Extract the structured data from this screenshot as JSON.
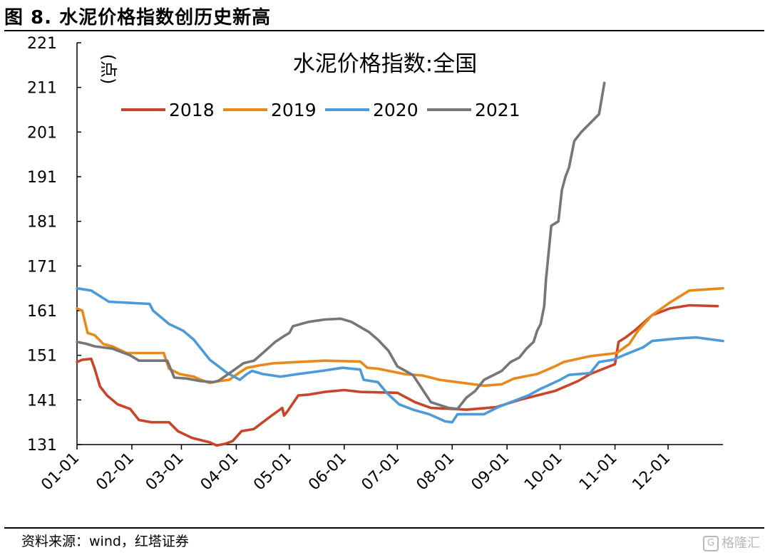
{
  "figure": {
    "title": "图 8. 水泥价格指数创历史新高",
    "source": "资料来源：wind，红塔证券",
    "watermark": "格隆汇",
    "watermark_icon": "G"
  },
  "chart_data": {
    "type": "line",
    "title": "水泥价格指数:全国",
    "ylabel": "(点)",
    "xlabel": "",
    "ylim": [
      131,
      221
    ],
    "yticks": [
      131,
      141,
      151,
      161,
      171,
      181,
      191,
      201,
      211,
      221
    ],
    "xlim": [
      0,
      365
    ],
    "xticks": [
      {
        "label": "01-01",
        "day": 0
      },
      {
        "label": "02-01",
        "day": 31
      },
      {
        "label": "03-01",
        "day": 59
      },
      {
        "label": "04-01",
        "day": 90
      },
      {
        "label": "05-01",
        "day": 120
      },
      {
        "label": "06-01",
        "day": 151
      },
      {
        "label": "07-01",
        "day": 181
      },
      {
        "label": "08-01",
        "day": 212
      },
      {
        "label": "09-01",
        "day": 243
      },
      {
        "label": "10-01",
        "day": 273
      },
      {
        "label": "11-01",
        "day": 304
      },
      {
        "label": "12-01",
        "day": 334
      }
    ],
    "grid": false,
    "legend_position": "top-left",
    "series": [
      {
        "name": "2018",
        "color": "#c8452a",
        "points": [
          [
            0,
            149.5
          ],
          [
            3,
            150
          ],
          [
            8,
            150.2
          ],
          [
            10,
            148
          ],
          [
            13,
            144
          ],
          [
            17,
            142
          ],
          [
            23,
            140
          ],
          [
            30,
            139
          ],
          [
            35,
            136.5
          ],
          [
            42,
            136
          ],
          [
            52,
            136
          ],
          [
            57,
            134
          ],
          [
            65,
            132.5
          ],
          [
            75,
            131.5
          ],
          [
            79,
            130.8
          ],
          [
            84,
            131.2
          ],
          [
            88,
            131.8
          ],
          [
            93,
            134
          ],
          [
            100,
            134.5
          ],
          [
            110,
            137.5
          ],
          [
            116,
            139.2
          ],
          [
            117,
            137.5
          ],
          [
            119,
            138.5
          ],
          [
            125,
            142
          ],
          [
            131,
            142.2
          ],
          [
            140,
            142.8
          ],
          [
            151,
            143.2
          ],
          [
            160,
            142.8
          ],
          [
            181,
            142.6
          ],
          [
            191,
            140.5
          ],
          [
            200,
            139.2
          ],
          [
            212,
            139
          ],
          [
            220,
            138.8
          ],
          [
            237,
            139.4
          ],
          [
            250,
            141
          ],
          [
            270,
            143
          ],
          [
            283,
            145.2
          ],
          [
            290,
            146.8
          ],
          [
            304,
            149
          ],
          [
            306,
            154
          ],
          [
            310,
            155
          ],
          [
            315,
            156.5
          ],
          [
            325,
            160
          ],
          [
            335,
            161.5
          ],
          [
            346,
            162.2
          ],
          [
            362,
            162
          ]
        ]
      },
      {
        "name": "2019",
        "color": "#e8891c",
        "points": [
          [
            0,
            161.5
          ],
          [
            3,
            161
          ],
          [
            6,
            156
          ],
          [
            10,
            155.5
          ],
          [
            15,
            153.5
          ],
          [
            20,
            153
          ],
          [
            28,
            151.5
          ],
          [
            49,
            151.5
          ],
          [
            52,
            148
          ],
          [
            58,
            146.8
          ],
          [
            66,
            146.2
          ],
          [
            70,
            145.5
          ],
          [
            75,
            144.8
          ],
          [
            80,
            145.2
          ],
          [
            86,
            145.5
          ],
          [
            92,
            147.2
          ],
          [
            96,
            148.2
          ],
          [
            104,
            148.8
          ],
          [
            111,
            149.2
          ],
          [
            125,
            149.5
          ],
          [
            140,
            149.8
          ],
          [
            160,
            149.6
          ],
          [
            164,
            148.2
          ],
          [
            170,
            148
          ],
          [
            185,
            146.8
          ],
          [
            195,
            146.5
          ],
          [
            205,
            145.5
          ],
          [
            230,
            144.2
          ],
          [
            240,
            144.5
          ],
          [
            247,
            145.8
          ],
          [
            260,
            146.8
          ],
          [
            270,
            148.5
          ],
          [
            275,
            149.5
          ],
          [
            290,
            150.8
          ],
          [
            305,
            151.5
          ],
          [
            312,
            153.5
          ],
          [
            317,
            156.5
          ],
          [
            325,
            160
          ],
          [
            335,
            162.8
          ],
          [
            346,
            165.5
          ],
          [
            365,
            166
          ]
        ]
      },
      {
        "name": "2020",
        "color": "#4c9ad8",
        "points": [
          [
            0,
            166
          ],
          [
            8,
            165.5
          ],
          [
            18,
            163
          ],
          [
            41,
            162.5
          ],
          [
            43,
            161
          ],
          [
            52,
            158
          ],
          [
            60,
            156.5
          ],
          [
            66,
            154.5
          ],
          [
            75,
            150
          ],
          [
            85,
            147
          ],
          [
            92,
            145.5
          ],
          [
            96,
            146.8
          ],
          [
            99,
            147.5
          ],
          [
            105,
            146.8
          ],
          [
            115,
            146.2
          ],
          [
            125,
            146.8
          ],
          [
            140,
            147.6
          ],
          [
            150,
            148.2
          ],
          [
            160,
            147.8
          ],
          [
            162,
            145.5
          ],
          [
            170,
            145
          ],
          [
            175,
            142.6
          ],
          [
            182,
            140
          ],
          [
            190,
            138.8
          ],
          [
            199,
            137.8
          ],
          [
            208,
            136.2
          ],
          [
            212,
            136
          ],
          [
            215,
            137.8
          ],
          [
            230,
            137.8
          ],
          [
            238,
            139.4
          ],
          [
            245,
            140.5
          ],
          [
            255,
            142
          ],
          [
            262,
            143.5
          ],
          [
            266,
            144.2
          ],
          [
            273,
            145.5
          ],
          [
            278,
            146.6
          ],
          [
            290,
            147
          ],
          [
            295,
            149.5
          ],
          [
            303,
            150
          ],
          [
            310,
            151.2
          ],
          [
            320,
            152.8
          ],
          [
            325,
            154.2
          ],
          [
            340,
            154.8
          ],
          [
            350,
            155
          ],
          [
            365,
            154.2
          ]
        ]
      },
      {
        "name": "2021",
        "color": "#767676",
        "points": [
          [
            0,
            154
          ],
          [
            5,
            153.6
          ],
          [
            10,
            153
          ],
          [
            20,
            152.5
          ],
          [
            30,
            151
          ],
          [
            35,
            149.8
          ],
          [
            51,
            149.8
          ],
          [
            55,
            146
          ],
          [
            62,
            145.8
          ],
          [
            70,
            145.2
          ],
          [
            77,
            145
          ],
          [
            80,
            145.3
          ],
          [
            88,
            147.5
          ],
          [
            94,
            149.2
          ],
          [
            100,
            149.8
          ],
          [
            105,
            151.5
          ],
          [
            112,
            154
          ],
          [
            117,
            155.3
          ],
          [
            120,
            156
          ],
          [
            122,
            157.5
          ],
          [
            131,
            158.5
          ],
          [
            140,
            159
          ],
          [
            149,
            159.2
          ],
          [
            155,
            158.5
          ],
          [
            165,
            156.2
          ],
          [
            170,
            154.5
          ],
          [
            176,
            152
          ],
          [
            181,
            148.5
          ],
          [
            187,
            147.2
          ],
          [
            190,
            146.5
          ],
          [
            195,
            143.5
          ],
          [
            200,
            140.5
          ],
          [
            210,
            139.2
          ],
          [
            215,
            139
          ],
          [
            220,
            141.5
          ],
          [
            225,
            143
          ],
          [
            230,
            145.5
          ],
          [
            240,
            147.5
          ],
          [
            245,
            149.5
          ],
          [
            250,
            150.5
          ],
          [
            254,
            152.5
          ],
          [
            258,
            154
          ],
          [
            260,
            156.5
          ],
          [
            262,
            158
          ],
          [
            264,
            162
          ],
          [
            265,
            168
          ],
          [
            266,
            172
          ],
          [
            268,
            180
          ],
          [
            272,
            181
          ],
          [
            274,
            188
          ],
          [
            276,
            191
          ],
          [
            278,
            193
          ],
          [
            281,
            199
          ],
          [
            285,
            201
          ],
          [
            290,
            203
          ],
          [
            295,
            205
          ],
          [
            298,
            212
          ]
        ]
      }
    ]
  }
}
